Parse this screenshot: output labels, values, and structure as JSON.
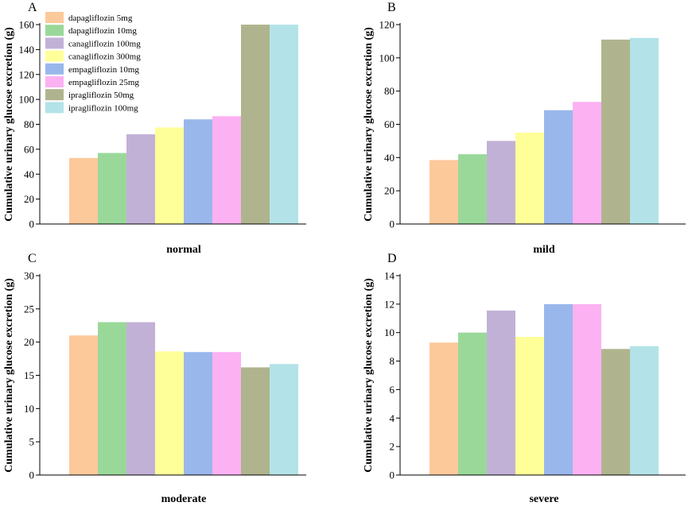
{
  "legend": {
    "entries": [
      {
        "name": "dapagliflozin 5mg",
        "color": "#fcc99b"
      },
      {
        "name": "dapagliflozin 10mg",
        "color": "#9ad89a"
      },
      {
        "name": "canagliflozin 100mg",
        "color": "#c2b1d7"
      },
      {
        "name": "canagliflozin 300mg",
        "color": "#ffff99"
      },
      {
        "name": "empagliflozin 10mg",
        "color": "#9ab7ec"
      },
      {
        "name": "empagliflozin 25mg",
        "color": "#fcb1f2"
      },
      {
        "name": "ipragliflozin 50mg",
        "color": "#b0b48e"
      },
      {
        "name": "ipragliflozin 100mg",
        "color": "#b3e3e8"
      }
    ]
  },
  "chart_data": [
    {
      "type": "bar",
      "panel": "A",
      "xlabel": "normal",
      "ylabel": "Cumulative urinary glucose excretion (g)",
      "ylim": [
        0,
        160
      ],
      "yticks": [
        0,
        20,
        40,
        60,
        80,
        100,
        120,
        140,
        160
      ],
      "categories": [
        "dapagliflozin 5mg",
        "dapagliflozin 10mg",
        "canagliflozin 100mg",
        "canagliflozin 300mg",
        "empagliflozin 10mg",
        "empagliflozin 25mg",
        "ipragliflozin 50mg",
        "ipragliflozin 100mg"
      ],
      "values": [
        53,
        57,
        72,
        77.5,
        84,
        86.5,
        160,
        160
      ]
    },
    {
      "type": "bar",
      "panel": "B",
      "xlabel": "mild",
      "ylabel": "Cumulative urinary glucose excretion (g)",
      "ylim": [
        0,
        120
      ],
      "yticks": [
        0,
        20,
        40,
        60,
        80,
        100,
        120
      ],
      "categories": [
        "dapagliflozin 5mg",
        "dapagliflozin 10mg",
        "canagliflozin 100mg",
        "canagliflozin 300mg",
        "empagliflozin 10mg",
        "empagliflozin 25mg",
        "ipragliflozin 50mg",
        "ipragliflozin 100mg"
      ],
      "values": [
        38.5,
        42,
        50,
        55,
        68.5,
        73.5,
        111,
        112
      ]
    },
    {
      "type": "bar",
      "panel": "C",
      "xlabel": "moderate",
      "ylabel": "Cumulative urinary glucose excretion (g)",
      "ylim": [
        0,
        30
      ],
      "yticks": [
        0,
        5,
        10,
        15,
        20,
        25,
        30
      ],
      "categories": [
        "dapagliflozin 5mg",
        "dapagliflozin 10mg",
        "canagliflozin 100mg",
        "canagliflozin 300mg",
        "empagliflozin 10mg",
        "empagliflozin 25mg",
        "ipragliflozin 50mg",
        "ipragliflozin 100mg"
      ],
      "values": [
        21,
        23,
        23,
        18.6,
        18.5,
        18.5,
        16.2,
        16.7
      ]
    },
    {
      "type": "bar",
      "panel": "D",
      "xlabel": "severe",
      "ylabel": "Cumulative urinary glucose excretion (g)",
      "ylim": [
        0,
        14
      ],
      "yticks": [
        0,
        2,
        4,
        6,
        8,
        10,
        12,
        14
      ],
      "categories": [
        "dapagliflozin 5mg",
        "dapagliflozin 10mg",
        "canagliflozin 100mg",
        "canagliflozin 300mg",
        "empagliflozin 10mg",
        "empagliflozin 25mg",
        "ipragliflozin 50mg",
        "ipragliflozin 100mg"
      ],
      "values": [
        9.3,
        10,
        11.55,
        9.7,
        12,
        12,
        8.85,
        9.05
      ]
    }
  ]
}
